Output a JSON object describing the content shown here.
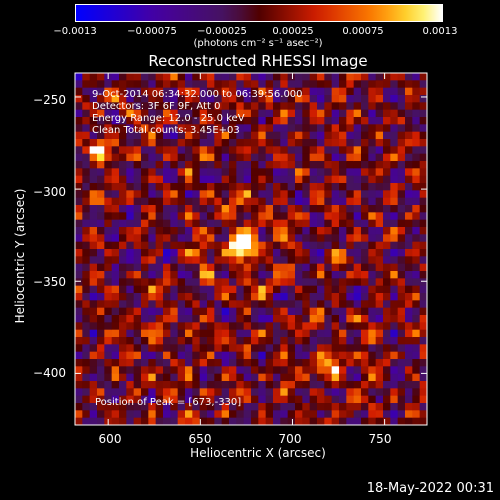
{
  "chart_data": {
    "type": "heatmap",
    "title": "Reconstructed RHESSI Image",
    "xlabel": "Heliocentric X (arcsec)",
    "ylabel": "Heliocentric Y (arcsec)",
    "xlim": [
      582,
      773
    ],
    "ylim": [
      -428,
      -237
    ],
    "xticks": [
      600,
      650,
      700,
      750
    ],
    "yticks": [
      -250,
      -300,
      -350,
      -400
    ],
    "xtick_labels": [
      "600",
      "650",
      "700",
      "750"
    ],
    "ytick_labels": [
      "−250",
      "−300",
      "−350",
      "−400"
    ],
    "colorbar": {
      "min": -0.0013,
      "max": 0.0013,
      "tick_labels": [
        "−0.0013",
        "−0.00075",
        "−0.00025",
        "0.00025",
        "0.00075",
        "0.0013"
      ],
      "tick_values": [
        -0.0013,
        -0.00075,
        -0.00025,
        0.00025,
        0.00075,
        0.0013
      ],
      "units": "(photons cm⁻² s⁻¹ asec⁻²)"
    },
    "annotations": [
      "9-Oct-2014 06:34:32.000 to 06:39:56.000",
      "Detectors: 3F 6F 9F, Att 0",
      "Energy Range: 12.0 - 25.0 keV",
      "Clean     Total counts: 3.45E+03"
    ],
    "peak_label": "Position of Peak = [673,-330]",
    "peak": [
      673,
      -330
    ],
    "sources": [
      {
        "x": 673,
        "y": -330,
        "amplitude": 0.0013,
        "sigma": 9
      },
      {
        "x": 720,
        "y": -395,
        "amplitude": 0.0008,
        "sigma": 8
      },
      {
        "x": 597,
        "y": -278,
        "amplitude": 0.0007,
        "sigma": 8
      },
      {
        "x": 628,
        "y": -378,
        "amplitude": 0.00055,
        "sigma": 6
      }
    ],
    "grid": false,
    "colormap": "blue-purple-red-yellow-white"
  },
  "footer": {
    "date": "18-May-2022 00:31"
  }
}
